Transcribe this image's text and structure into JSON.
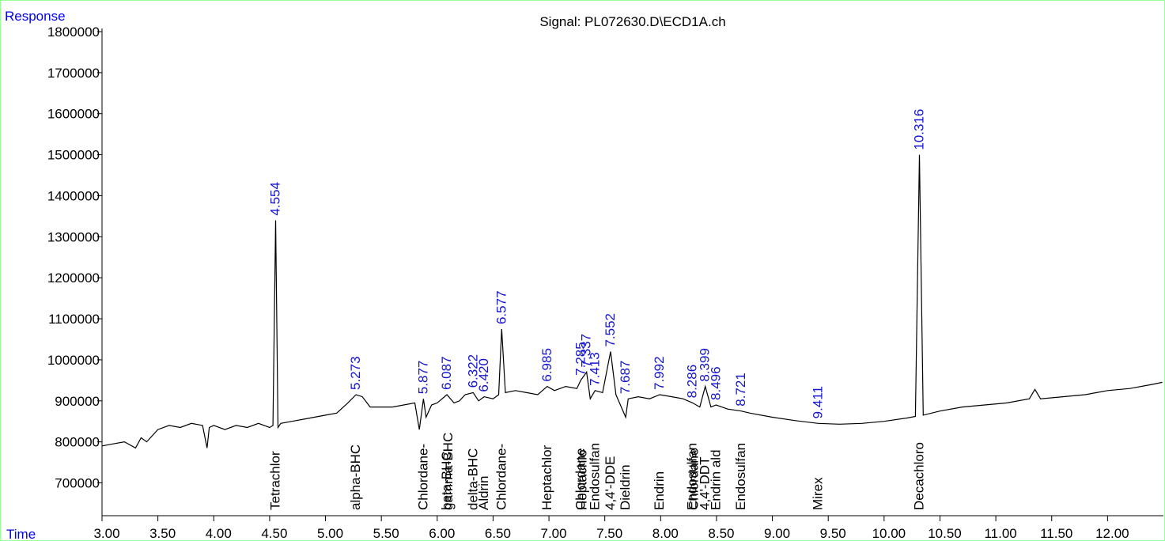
{
  "chart_data": {
    "type": "line",
    "title": "Signal: PL072630.D\\ECD1A.ch",
    "y_label": "Response",
    "x_label": "Time",
    "xlim": [
      3.0,
      12.5
    ],
    "ylim": [
      620000,
      1800000
    ],
    "xticks": [
      {
        "value": 3,
        "label": "3.00"
      },
      {
        "value": 3.5,
        "label": "3.50"
      },
      {
        "value": 4,
        "label": "4.00"
      },
      {
        "value": 4.5,
        "label": "4.50"
      },
      {
        "value": 5,
        "label": "5.00"
      },
      {
        "value": 5.5,
        "label": "5.50"
      },
      {
        "value": 6,
        "label": "6.00"
      },
      {
        "value": 6.5,
        "label": "6.50"
      },
      {
        "value": 7,
        "label": "7.00"
      },
      {
        "value": 7.5,
        "label": "7.50"
      },
      {
        "value": 8,
        "label": "8.00"
      },
      {
        "value": 8.5,
        "label": "8.50"
      },
      {
        "value": 9,
        "label": "9.00"
      },
      {
        "value": 9.5,
        "label": "9.50"
      },
      {
        "value": 10,
        "label": "10.00"
      },
      {
        "value": 10.5,
        "label": "10.50"
      },
      {
        "value": 11,
        "label": "11.00"
      },
      {
        "value": 11.5,
        "label": "11.50"
      },
      {
        "value": 12,
        "label": "12.00"
      }
    ],
    "yticks": [
      700000,
      800000,
      900000,
      1000000,
      1100000,
      1200000,
      1300000,
      1400000,
      1500000,
      1600000,
      1700000,
      1800000
    ],
    "series": [
      {
        "name": "ECD1A",
        "color": "#000000",
        "x": [
          3.0,
          3.1,
          3.2,
          3.3,
          3.35,
          3.4,
          3.5,
          3.6,
          3.7,
          3.8,
          3.9,
          3.94,
          3.96,
          4.0,
          4.1,
          4.2,
          4.3,
          4.4,
          4.5,
          4.53,
          4.554,
          4.575,
          4.6,
          4.7,
          4.8,
          4.9,
          5.0,
          5.1,
          5.2,
          5.273,
          5.33,
          5.4,
          5.5,
          5.6,
          5.7,
          5.8,
          5.84,
          5.877,
          5.9,
          5.95,
          6.0,
          6.087,
          6.15,
          6.2,
          6.25,
          6.322,
          6.37,
          6.42,
          6.5,
          6.55,
          6.577,
          6.61,
          6.7,
          6.8,
          6.9,
          6.985,
          7.05,
          7.15,
          7.25,
          7.285,
          7.337,
          7.37,
          7.413,
          7.48,
          7.552,
          7.6,
          7.687,
          7.71,
          7.8,
          7.9,
          7.992,
          8.1,
          8.2,
          8.286,
          8.35,
          8.399,
          8.45,
          8.496,
          8.6,
          8.721,
          8.8,
          9.0,
          9.2,
          9.411,
          9.6,
          9.8,
          10.0,
          10.2,
          10.28,
          10.316,
          10.35,
          10.5,
          10.7,
          10.9,
          11.1,
          11.3,
          11.35,
          11.4,
          11.6,
          11.8,
          12.0,
          12.2,
          12.4,
          12.49
        ],
        "values": [
          790000,
          795000,
          800000,
          785000,
          810000,
          800000,
          830000,
          840000,
          835000,
          845000,
          840000,
          785000,
          835000,
          840000,
          830000,
          840000,
          835000,
          845000,
          835000,
          840000,
          1340000,
          835000,
          845000,
          850000,
          855000,
          860000,
          865000,
          870000,
          895000,
          915000,
          910000,
          885000,
          885000,
          885000,
          890000,
          895000,
          830000,
          905000,
          860000,
          890000,
          895000,
          915000,
          895000,
          900000,
          915000,
          920000,
          900000,
          910000,
          905000,
          915000,
          1075000,
          920000,
          925000,
          920000,
          915000,
          935000,
          925000,
          935000,
          930000,
          950000,
          970000,
          905000,
          925000,
          920000,
          1020000,
          915000,
          860000,
          905000,
          910000,
          905000,
          915000,
          910000,
          905000,
          895000,
          885000,
          935000,
          885000,
          890000,
          880000,
          875000,
          870000,
          860000,
          852000,
          845000,
          843000,
          845000,
          850000,
          858000,
          862000,
          1500000,
          865000,
          875000,
          885000,
          890000,
          895000,
          905000,
          928000,
          905000,
          910000,
          915000,
          925000,
          930000,
          940000,
          945000
        ]
      }
    ],
    "peak_labels": [
      {
        "label": "4.554",
        "x": 4.554,
        "y": 1340000
      },
      {
        "label": "5.273",
        "x": 5.273,
        "y": 915000
      },
      {
        "label": "5.877",
        "x": 5.877,
        "y": 905000
      },
      {
        "label": "6.087",
        "x": 6.087,
        "y": 915000
      },
      {
        "label": "6.322",
        "x": 6.322,
        "y": 920000
      },
      {
        "label": "6.420",
        "x": 6.42,
        "y": 910000
      },
      {
        "label": "6.577",
        "x": 6.577,
        "y": 1075000
      },
      {
        "label": "6.985",
        "x": 6.985,
        "y": 935000
      },
      {
        "label": "7.285",
        "x": 7.285,
        "y": 950000
      },
      {
        "label": "7.337",
        "x": 7.337,
        "y": 970000
      },
      {
        "label": "7.413",
        "x": 7.413,
        "y": 925000
      },
      {
        "label": "7.552",
        "x": 7.552,
        "y": 1020000
      },
      {
        "label": "7.687",
        "x": 7.687,
        "y": 905000
      },
      {
        "label": "7.992",
        "x": 7.992,
        "y": 915000
      },
      {
        "label": "8.286",
        "x": 8.286,
        "y": 895000
      },
      {
        "label": "8.399",
        "x": 8.399,
        "y": 935000
      },
      {
        "label": "8.496",
        "x": 8.496,
        "y": 890000
      },
      {
        "label": "8.721",
        "x": 8.721,
        "y": 875000
      },
      {
        "label": "9.411",
        "x": 9.411,
        "y": 845000
      },
      {
        "label": "10.316",
        "x": 10.316,
        "y": 1500000
      }
    ],
    "compounds": [
      {
        "name": "Tetrachlor",
        "x": 4.554
      },
      {
        "name": "alpha-BHC",
        "x": 5.273
      },
      {
        "name": "Chlordane-",
        "x": 5.877
      },
      {
        "name": "beta-BHC",
        "x": 6.087
      },
      {
        "name": "gamma-BHC",
        "x": 6.1
      },
      {
        "name": "delta-BHC",
        "x": 6.322
      },
      {
        "name": "Aldrin",
        "x": 6.42
      },
      {
        "name": "Chlordane-",
        "x": 6.577
      },
      {
        "name": "Heptachlor",
        "x": 6.985
      },
      {
        "name": "Chlordane",
        "x": 7.285
      },
      {
        "name": "Heptachlo",
        "x": 7.3
      },
      {
        "name": "Endosulfan",
        "x": 7.413
      },
      {
        "name": "4,4'-DDE",
        "x": 7.552
      },
      {
        "name": "Dieldrin",
        "x": 7.687
      },
      {
        "name": "Endrin",
        "x": 7.992
      },
      {
        "name": "Endosulfan",
        "x": 8.286
      },
      {
        "name": "Chlordane",
        "x": 8.3
      },
      {
        "name": "4,4'-DDT",
        "x": 8.399
      },
      {
        "name": "Endrin ald",
        "x": 8.496
      },
      {
        "name": "Endosulfan",
        "x": 8.721
      },
      {
        "name": "Mirex",
        "x": 9.411
      },
      {
        "name": "Decachloro",
        "x": 10.316
      }
    ]
  }
}
